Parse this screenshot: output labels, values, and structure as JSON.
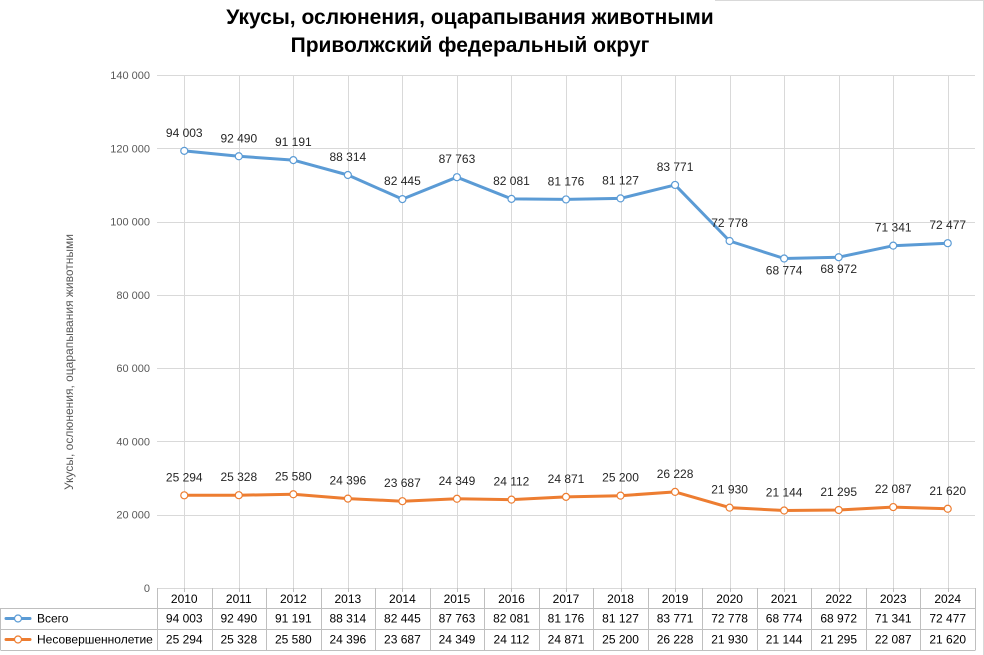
{
  "chart_data": {
    "type": "line",
    "stacked": true,
    "title": "Укусы, ослюнения, оцарапывания животными",
    "subtitle": "Приволжский федеральный округ",
    "xlabel": "",
    "ylabel": "Укусы, ослюнения, оцарапывания животными",
    "categories": [
      "2010",
      "2011",
      "2012",
      "2013",
      "2014",
      "2015",
      "2016",
      "2017",
      "2018",
      "2019",
      "2020",
      "2021",
      "2022",
      "2023",
      "2024"
    ],
    "series": [
      {
        "name": "Всего",
        "color": "#5B9BD5",
        "values": [
          94003,
          92490,
          91191,
          88314,
          82445,
          87763,
          82081,
          81176,
          81127,
          83771,
          72778,
          68774,
          68972,
          71341,
          72477
        ]
      },
      {
        "name": "Несовершеннолетие",
        "color": "#ED7D31",
        "values": [
          25294,
          25328,
          25580,
          24396,
          23687,
          24349,
          24112,
          24871,
          25200,
          26228,
          21930,
          21144,
          21295,
          22087,
          21620
        ]
      }
    ],
    "ylim": [
      0,
      140000
    ],
    "yticks": [
      0,
      20000,
      40000,
      60000,
      80000,
      100000,
      120000,
      140000
    ],
    "grid": true,
    "data_labels": true,
    "data_table": true,
    "legend": "bottom"
  }
}
